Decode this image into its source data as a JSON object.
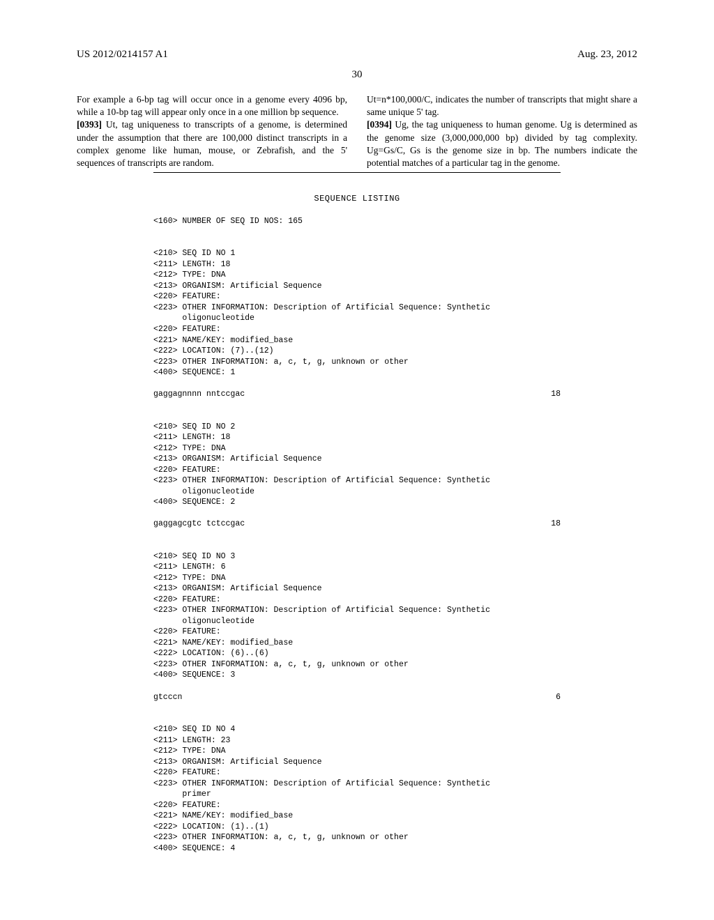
{
  "header": {
    "left": "US 2012/0214157 A1",
    "right": "Aug. 23, 2012"
  },
  "page_number": "30",
  "column_left": {
    "para1": "For example a 6-bp tag will occur once in a genome every 4096 bp, while a 10-bp tag will appear only once in a one million bp sequence.",
    "para2_num": "[0393]",
    "para2": "   Ut, tag uniqueness to transcripts of a genome, is determined under the assumption that there are 100,000 distinct transcripts in a complex genome like human, mouse, or Zebrafish, and the 5' sequences of transcripts are random."
  },
  "column_right": {
    "para1": "Ut=n*100,000/C, indicates the number of transcripts that might share a same unique 5' tag.",
    "para2_num": "[0394]",
    "para2": "   Ug, the tag uniqueness to human genome. Ug is determined as the genome size (3,000,000,000 bp) divided by tag complexity. Ug=Gs/C, Gs is the genome size in bp. The numbers indicate the potential matches of a particular tag in the genome."
  },
  "sequence_listing": {
    "title": "SEQUENCE LISTING",
    "entries": [
      {
        "lines": [
          "<160> NUMBER OF SEQ ID NOS: 165"
        ]
      },
      {
        "lines": [
          "<210> SEQ ID NO 1",
          "<211> LENGTH: 18",
          "<212> TYPE: DNA",
          "<213> ORGANISM: Artificial Sequence",
          "<220> FEATURE:",
          "<223> OTHER INFORMATION: Description of Artificial Sequence: Synthetic",
          "      oligonucleotide",
          "<220> FEATURE:",
          "<221> NAME/KEY: modified_base",
          "<222> LOCATION: (7)..(12)",
          "<223> OTHER INFORMATION: a, c, t, g, unknown or other",
          "",
          "<400> SEQUENCE: 1"
        ],
        "seq_line": {
          "left": "gaggagnnnn nntccgac",
          "right": "18"
        }
      },
      {
        "lines": [
          "<210> SEQ ID NO 2",
          "<211> LENGTH: 18",
          "<212> TYPE: DNA",
          "<213> ORGANISM: Artificial Sequence",
          "<220> FEATURE:",
          "<223> OTHER INFORMATION: Description of Artificial Sequence: Synthetic",
          "      oligonucleotide",
          "",
          "<400> SEQUENCE: 2"
        ],
        "seq_line": {
          "left": "gaggagcgtc tctccgac",
          "right": "18"
        }
      },
      {
        "lines": [
          "<210> SEQ ID NO 3",
          "<211> LENGTH: 6",
          "<212> TYPE: DNA",
          "<213> ORGANISM: Artificial Sequence",
          "<220> FEATURE:",
          "<223> OTHER INFORMATION: Description of Artificial Sequence: Synthetic",
          "      oligonucleotide",
          "<220> FEATURE:",
          "<221> NAME/KEY: modified_base",
          "<222> LOCATION: (6)..(6)",
          "<223> OTHER INFORMATION: a, c, t, g, unknown or other",
          "",
          "<400> SEQUENCE: 3"
        ],
        "seq_line": {
          "left": "gtcccn",
          "right": "6"
        }
      },
      {
        "lines": [
          "<210> SEQ ID NO 4",
          "<211> LENGTH: 23",
          "<212> TYPE: DNA",
          "<213> ORGANISM: Artificial Sequence",
          "<220> FEATURE:",
          "<223> OTHER INFORMATION: Description of Artificial Sequence: Synthetic",
          "      primer",
          "<220> FEATURE:",
          "<221> NAME/KEY: modified_base",
          "<222> LOCATION: (1)..(1)",
          "<223> OTHER INFORMATION: a, c, t, g, unknown or other",
          "",
          "<400> SEQUENCE: 4"
        ]
      }
    ]
  }
}
